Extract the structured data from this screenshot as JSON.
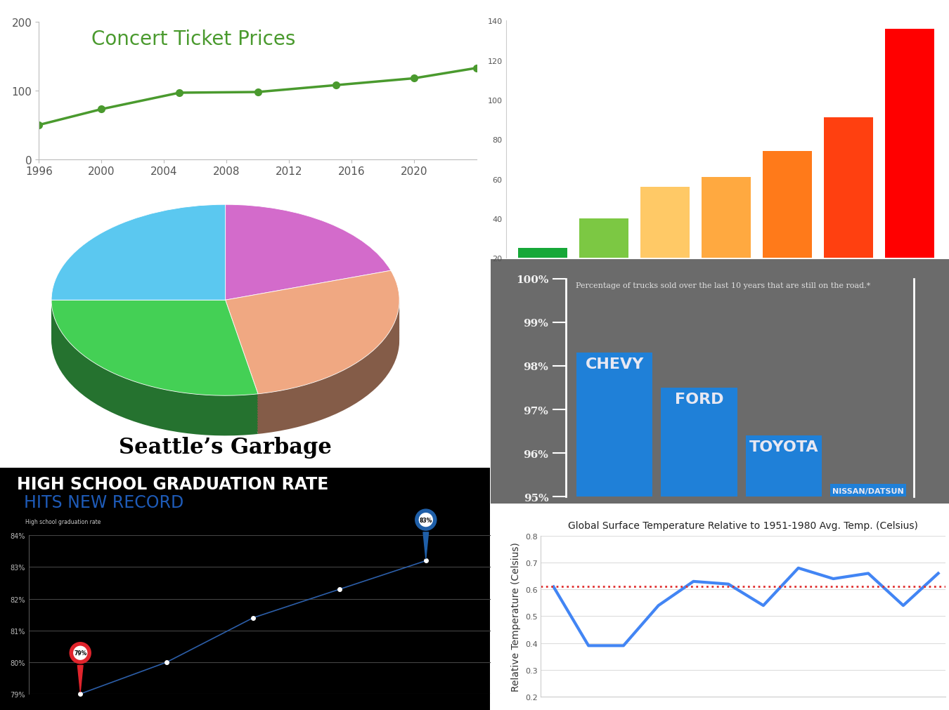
{
  "chart_data": [
    {
      "type": "line",
      "title": "Concert Ticket Prices",
      "x": [
        1996,
        2000,
        2005,
        2010,
        2015,
        2020,
        2024
      ],
      "values": [
        50,
        73,
        97,
        98,
        108,
        118,
        133
      ],
      "color": "#4a9a2e",
      "marker": "circle",
      "line_style": "solid",
      "xlim": [
        1996,
        2024
      ],
      "xticks": [
        1996,
        2000,
        2004,
        2008,
        2012,
        2016,
        2020
      ],
      "ylim": [
        0,
        200
      ],
      "yticks": [
        0,
        100,
        200
      ],
      "grid": false
    },
    {
      "type": "bar",
      "categories": [
        null,
        null,
        null,
        null,
        null,
        null,
        null
      ],
      "values": [
        25,
        40,
        56,
        61,
        74,
        91,
        136
      ],
      "colors": [
        "#16a838",
        "#7cc843",
        "#ffc966",
        "#ffa940",
        "#ff7a1a",
        "#ff4010",
        "#ff0000"
      ],
      "ylim": [
        20,
        140
      ],
      "yticks": [
        20,
        40,
        60,
        80,
        100,
        120,
        140
      ],
      "tick_labels": "y",
      "grid": false
    },
    {
      "type": "pie",
      "title": "Seattle’s Garbage",
      "values": [
        20,
        27,
        28,
        25
      ],
      "colors": [
        "#d36bcb",
        "#f0a882",
        "#44d055",
        "#5bc8f0"
      ]
    },
    {
      "type": "bar",
      "title": "Percentage of trucks sold over the last 10 years that are still on the road.*",
      "categories": [
        "CHEVY",
        "FORD",
        "TOYOTA",
        "NISSAN/DATSUN"
      ],
      "values": [
        98.3,
        97.5,
        96.4,
        95.3
      ],
      "color": "#1f80d8",
      "ylim": [
        95,
        100
      ],
      "yticks": [
        {
          "value": 95,
          "label": "95%"
        },
        {
          "value": 96,
          "label": "96%"
        },
        {
          "value": 97,
          "label": "97%"
        },
        {
          "value": 98,
          "label": "98%"
        },
        {
          "value": 99,
          "label": "99%"
        },
        {
          "value": 100,
          "label": "100%"
        }
      ],
      "tick_labels": "y",
      "grid": false
    },
    {
      "type": "line",
      "title": "HIGH SCHOOL GRADUATION RATE",
      "subtitle": "HITS NEW RECORD",
      "ylabel": "High school graduation rate",
      "categories": [
        null,
        null,
        null,
        null,
        null
      ],
      "values": [
        79.0,
        80.0,
        81.4,
        82.3,
        83.2
      ],
      "value_labels": [
        "79%",
        null,
        null,
        null,
        "83%"
      ],
      "data_labels": true,
      "color": "#2c5ea8",
      "marker": "circle",
      "line_style": "solid",
      "ylim": [
        79,
        84
      ],
      "yticks": [
        {
          "value": 79,
          "label": "79%"
        },
        {
          "value": 80,
          "label": "80%"
        },
        {
          "value": 81,
          "label": "81%"
        },
        {
          "value": 82,
          "label": "82%"
        },
        {
          "value": 83,
          "label": "83%"
        },
        {
          "value": 84,
          "label": "84%"
        }
      ],
      "tick_labels": "y",
      "grid": true
    },
    {
      "type": "line",
      "title": "Global Surface Temperature Relative to 1951-1980 Avg. Temp. (Celsius)",
      "ylabel": "Relative Temperature (Celsius)",
      "categories": [
        null,
        null,
        null,
        null,
        null,
        null,
        null,
        null,
        null,
        null,
        null,
        null
      ],
      "values": [
        0.61,
        0.39,
        0.39,
        0.54,
        0.63,
        0.62,
        0.54,
        0.68,
        0.64,
        0.66,
        0.54,
        0.66
      ],
      "color": "#4285f4",
      "line_style": "solid",
      "reference_line": {
        "value": 0.61,
        "color": "#e03030",
        "line_style": "dotted"
      },
      "ylim": [
        0.2,
        0.8
      ],
      "yticks": [
        0.2,
        0.3,
        0.4,
        0.5,
        0.6,
        0.7,
        0.8
      ],
      "tick_labels": "y",
      "grid": true
    }
  ]
}
